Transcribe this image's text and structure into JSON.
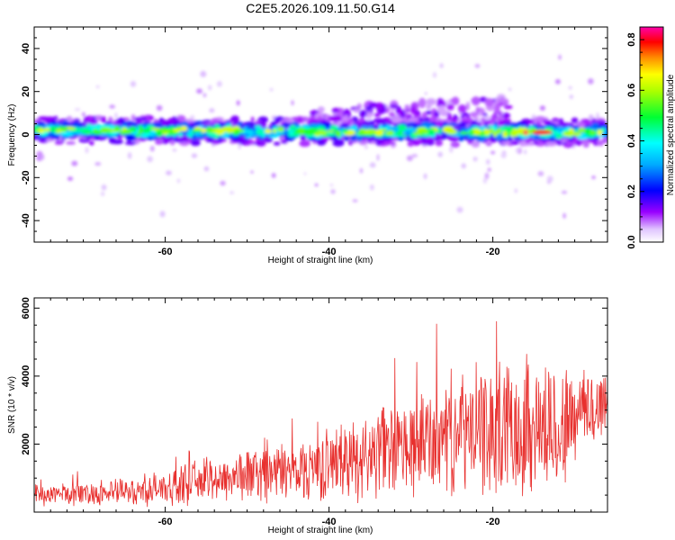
{
  "figure_title": "C2E5.2026.109.11.50.G14",
  "chart_data": [
    {
      "type": "heatmap",
      "title": "C2E5.2026.109.11.50.G14",
      "xlabel": "Height of straight line (km)",
      "ylabel": "Frequency (Hz)",
      "colorbar_label": "Normalized spectral amplitude",
      "xlim": [
        -76,
        -6
      ],
      "ylim": [
        -50,
        50
      ],
      "xticks": [
        -60,
        -40,
        -20
      ],
      "yticks": [
        -40,
        -20,
        0,
        20,
        40
      ],
      "cticks": [
        0.0,
        0.2,
        0.4,
        0.6,
        0.8
      ],
      "clim": [
        0.0,
        0.85
      ],
      "colormap": [
        "#ffffff",
        "#d9b3ff",
        "#9900ff",
        "#0000ff",
        "#00ffff",
        "#00ff00",
        "#ffff00",
        "#ff0000",
        "#ff00aa"
      ],
      "bands": [
        {
          "x": [
            -76,
            -6
          ],
          "center_hz": [
            2,
            1
          ],
          "halfwidth_hz": 6,
          "level": "main"
        },
        {
          "x": [
            -42,
            -18
          ],
          "center_hz": [
            6,
            12
          ],
          "halfwidth_hz": 6,
          "level": "weak"
        }
      ],
      "peak": {
        "x": -14,
        "y": 1,
        "value": 0.85
      }
    },
    {
      "type": "line",
      "title": "",
      "xlabel": "Height of straight line (km)",
      "ylabel": "SNR (10 * v/v)",
      "xlim": [
        -76,
        -6
      ],
      "ylim": [
        0,
        6300
      ],
      "xticks": [
        -60,
        -40,
        -20
      ],
      "yticks": [
        2000,
        4000,
        6000
      ],
      "color": "#e8302e",
      "envelope": {
        "x": [
          -76,
          -70,
          -64,
          -60,
          -56,
          -50,
          -45,
          -40,
          -35,
          -30,
          -25,
          -20,
          -15,
          -12,
          -10,
          -8,
          -6
        ],
        "mean": [
          500,
          550,
          600,
          700,
          900,
          1100,
          1200,
          1400,
          1700,
          1900,
          2300,
          2400,
          2600,
          2400,
          2800,
          3000,
          3300
        ],
        "amplitude": [
          350,
          400,
          450,
          600,
          700,
          900,
          1000,
          1200,
          1500,
          1700,
          2000,
          2200,
          2400,
          2300,
          1700,
          1500,
          1300
        ]
      }
    }
  ]
}
